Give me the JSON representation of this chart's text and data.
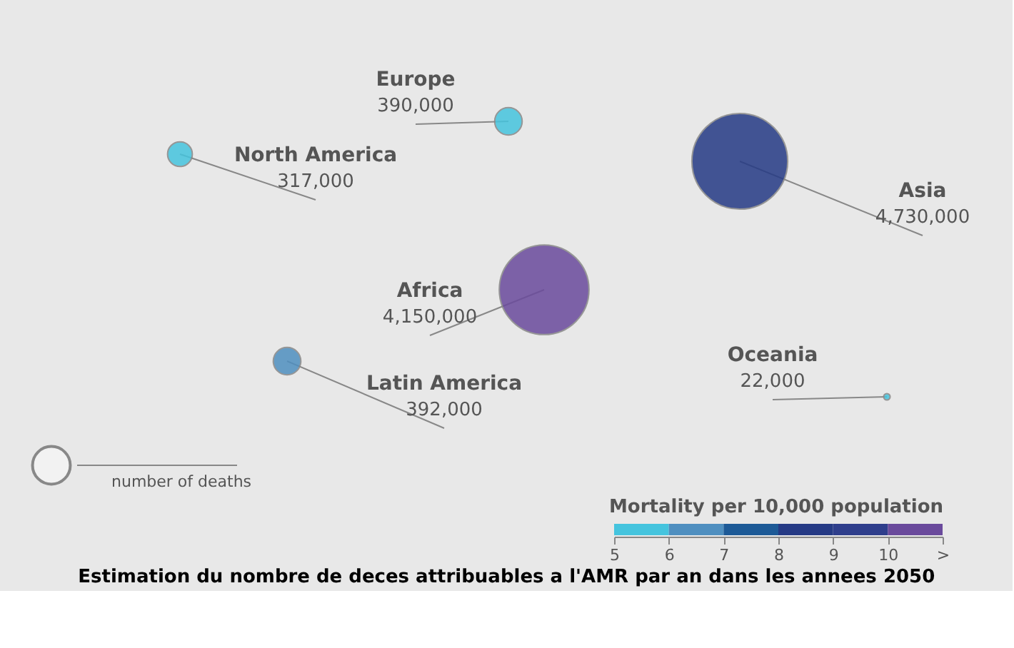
{
  "chart_data": [
    {
      "type": "other",
      "title": "Estimation du nombre de deces attribuables a l'AMR par an dans les annees 2050",
      "categories": [
        "North America",
        "Europe",
        "Asia",
        "Africa",
        "Latin America",
        "Oceania"
      ],
      "values": [
        317000,
        390000,
        4730000,
        4150000,
        392000,
        22000
      ],
      "value_labels": [
        "317,000",
        "390,000",
        "4,730,000",
        "4,150,000",
        "392,000",
        "22,000"
      ],
      "colors": [
        "#45c4de",
        "#45c4de",
        "#253a85",
        "#6a4a9c",
        "#4f8fc0",
        "#45c4de"
      ],
      "annotations": [
        "number of deaths"
      ]
    },
    {
      "type": "bar",
      "orientation": "horizontal",
      "title": "Mortality per 10,000 population",
      "categories": [
        null
      ],
      "series": [
        {
          "color": "#45c4de",
          "base": [
            5
          ],
          "values": [
            1
          ]
        },
        {
          "color": "#4f8fc0",
          "base": [
            6
          ],
          "values": [
            1
          ]
        },
        {
          "color": "#1d5a97",
          "base": [
            7
          ],
          "values": [
            1
          ]
        },
        {
          "color": "#253a85",
          "base": [
            8
          ],
          "values": [
            1
          ]
        },
        {
          "color": "#2e3e8c",
          "base": [
            9
          ],
          "values": [
            1
          ]
        },
        {
          "color": "#6a4a9c",
          "base": [
            10
          ],
          "values": [
            1
          ]
        }
      ],
      "xlim": [
        5,
        11
      ],
      "xticks": [
        5,
        6,
        7,
        8,
        9,
        10,
        {
          "value": 11,
          "label": ">"
        }
      ]
    }
  ]
}
